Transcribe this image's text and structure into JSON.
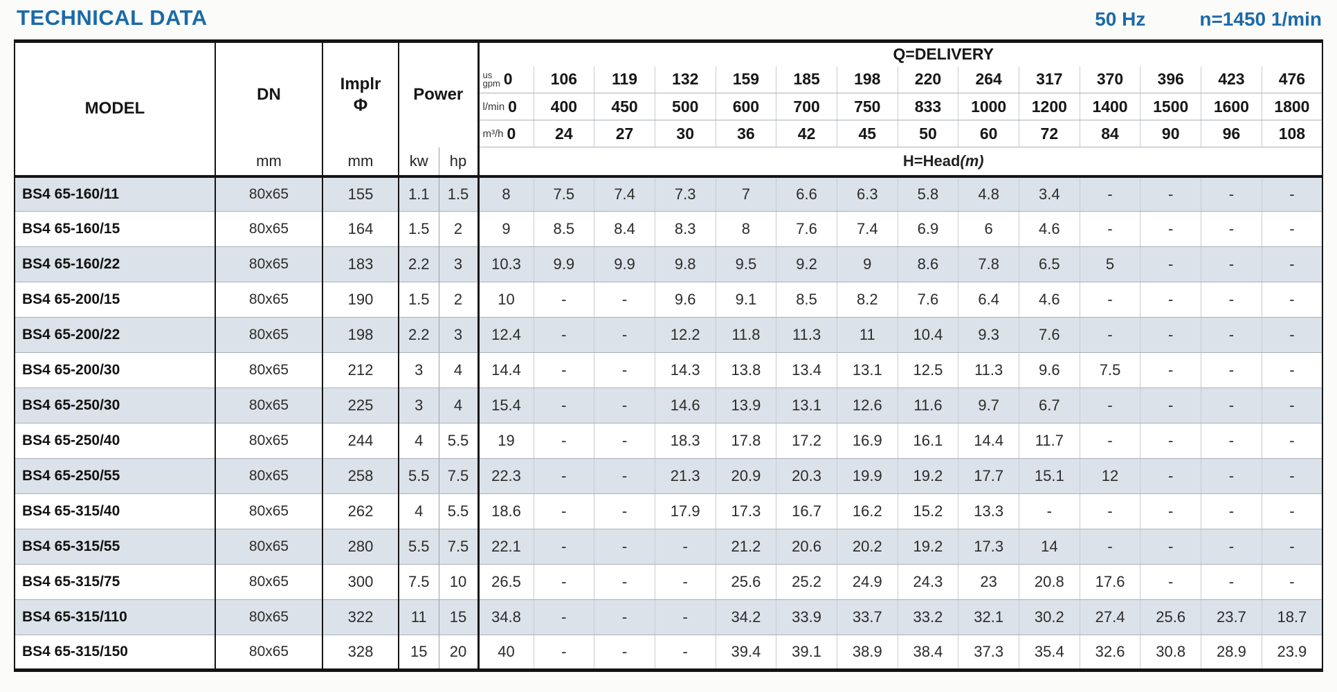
{
  "header": {
    "title": "TECHNICAL DATA",
    "frequency": "50 Hz",
    "speed": "n=1450 1/min"
  },
  "table": {
    "headers": {
      "model": "MODEL",
      "dn": "DN",
      "dn_unit": "mm",
      "impeller": "Implr",
      "impeller_phi": "Φ",
      "impeller_unit": "mm",
      "power": "Power",
      "power_kw": "kw",
      "power_hp": "hp",
      "delivery": "Q=DELIVERY",
      "head_label": "H=Head",
      "head_unit": "(m)"
    },
    "flow": {
      "gpm": {
        "unit_top": "us",
        "unit_bottom": "gpm",
        "values": [
          "0",
          "106",
          "119",
          "132",
          "159",
          "185",
          "198",
          "220",
          "264",
          "317",
          "370",
          "396",
          "423",
          "476"
        ]
      },
      "lmin": {
        "unit": "l/min",
        "values": [
          "0",
          "400",
          "450",
          "500",
          "600",
          "700",
          "750",
          "833",
          "1000",
          "1200",
          "1400",
          "1500",
          "1600",
          "1800"
        ]
      },
      "m3h": {
        "unit": "m³/h",
        "values": [
          "0",
          "24",
          "27",
          "30",
          "36",
          "42",
          "45",
          "50",
          "60",
          "72",
          "84",
          "90",
          "96",
          "108"
        ]
      }
    },
    "rows": [
      {
        "model": "BS4 65-160/11",
        "dn": "80x65",
        "impeller": "155",
        "kw": "1.1",
        "hp": "1.5",
        "heads": [
          "8",
          "7.5",
          "7.4",
          "7.3",
          "7",
          "6.6",
          "6.3",
          "5.8",
          "4.8",
          "3.4",
          "-",
          "-",
          "-",
          "-"
        ]
      },
      {
        "model": "BS4 65-160/15",
        "dn": "80x65",
        "impeller": "164",
        "kw": "1.5",
        "hp": "2",
        "heads": [
          "9",
          "8.5",
          "8.4",
          "8.3",
          "8",
          "7.6",
          "7.4",
          "6.9",
          "6",
          "4.6",
          "-",
          "-",
          "-",
          "-"
        ]
      },
      {
        "model": "BS4 65-160/22",
        "dn": "80x65",
        "impeller": "183",
        "kw": "2.2",
        "hp": "3",
        "heads": [
          "10.3",
          "9.9",
          "9.9",
          "9.8",
          "9.5",
          "9.2",
          "9",
          "8.6",
          "7.8",
          "6.5",
          "5",
          "-",
          "-",
          "-"
        ]
      },
      {
        "model": "BS4 65-200/15",
        "dn": "80x65",
        "impeller": "190",
        "kw": "1.5",
        "hp": "2",
        "heads": [
          "10",
          "-",
          "-",
          "9.6",
          "9.1",
          "8.5",
          "8.2",
          "7.6",
          "6.4",
          "4.6",
          "-",
          "-",
          "-",
          "-"
        ]
      },
      {
        "model": "BS4 65-200/22",
        "dn": "80x65",
        "impeller": "198",
        "kw": "2.2",
        "hp": "3",
        "heads": [
          "12.4",
          "-",
          "-",
          "12.2",
          "11.8",
          "11.3",
          "11",
          "10.4",
          "9.3",
          "7.6",
          "-",
          "-",
          "-",
          "-"
        ]
      },
      {
        "model": "BS4 65-200/30",
        "dn": "80x65",
        "impeller": "212",
        "kw": "3",
        "hp": "4",
        "heads": [
          "14.4",
          "-",
          "-",
          "14.3",
          "13.8",
          "13.4",
          "13.1",
          "12.5",
          "11.3",
          "9.6",
          "7.5",
          "-",
          "-",
          "-"
        ]
      },
      {
        "model": "BS4 65-250/30",
        "dn": "80x65",
        "impeller": "225",
        "kw": "3",
        "hp": "4",
        "heads": [
          "15.4",
          "-",
          "-",
          "14.6",
          "13.9",
          "13.1",
          "12.6",
          "11.6",
          "9.7",
          "6.7",
          "-",
          "-",
          "-",
          "-"
        ]
      },
      {
        "model": "BS4 65-250/40",
        "dn": "80x65",
        "impeller": "244",
        "kw": "4",
        "hp": "5.5",
        "heads": [
          "19",
          "-",
          "-",
          "18.3",
          "17.8",
          "17.2",
          "16.9",
          "16.1",
          "14.4",
          "11.7",
          "-",
          "-",
          "-",
          "-"
        ]
      },
      {
        "model": "BS4 65-250/55",
        "dn": "80x65",
        "impeller": "258",
        "kw": "5.5",
        "hp": "7.5",
        "heads": [
          "22.3",
          "-",
          "-",
          "21.3",
          "20.9",
          "20.3",
          "19.9",
          "19.2",
          "17.7",
          "15.1",
          "12",
          "-",
          "-",
          "-"
        ]
      },
      {
        "model": "BS4 65-315/40",
        "dn": "80x65",
        "impeller": "262",
        "kw": "4",
        "hp": "5.5",
        "heads": [
          "18.6",
          "-",
          "-",
          "17.9",
          "17.3",
          "16.7",
          "16.2",
          "15.2",
          "13.3",
          "-",
          "-",
          "-",
          "-",
          "-"
        ]
      },
      {
        "model": "BS4 65-315/55",
        "dn": "80x65",
        "impeller": "280",
        "kw": "5.5",
        "hp": "7.5",
        "heads": [
          "22.1",
          "-",
          "-",
          "-",
          "21.2",
          "20.6",
          "20.2",
          "19.2",
          "17.3",
          "14",
          "-",
          "-",
          "-",
          "-"
        ]
      },
      {
        "model": "BS4 65-315/75",
        "dn": "80x65",
        "impeller": "300",
        "kw": "7.5",
        "hp": "10",
        "heads": [
          "26.5",
          "-",
          "-",
          "-",
          "25.6",
          "25.2",
          "24.9",
          "24.3",
          "23",
          "20.8",
          "17.6",
          "-",
          "-",
          "-"
        ]
      },
      {
        "model": "BS4 65-315/110",
        "dn": "80x65",
        "impeller": "322",
        "kw": "11",
        "hp": "15",
        "heads": [
          "34.8",
          "-",
          "-",
          "-",
          "34.2",
          "33.9",
          "33.7",
          "33.2",
          "32.1",
          "30.2",
          "27.4",
          "25.6",
          "23.7",
          "18.7"
        ]
      },
      {
        "model": "BS4 65-315/150",
        "dn": "80x65",
        "impeller": "328",
        "kw": "15",
        "hp": "20",
        "heads": [
          "40",
          "-",
          "-",
          "-",
          "39.4",
          "39.1",
          "38.9",
          "38.4",
          "37.3",
          "35.4",
          "32.6",
          "30.8",
          "28.9",
          "23.9"
        ]
      }
    ]
  }
}
